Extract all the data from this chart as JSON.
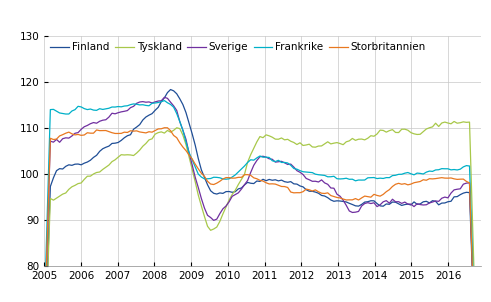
{
  "title": "",
  "ylim": [
    80,
    130
  ],
  "yticks": [
    80,
    90,
    100,
    110,
    120,
    130
  ],
  "countries": [
    "Finland",
    "Tyskland",
    "Sverige",
    "Frankrike",
    "Storbritannien"
  ],
  "colors": {
    "Finland": "#1F4E96",
    "Tyskland": "#A8C84A",
    "Sverige": "#7030A0",
    "Frankrike": "#00B0C8",
    "Storbritannien": "#E87820"
  },
  "linewidth": 0.9,
  "grid_color": "#C8C8C8",
  "background_color": "#FFFFFF",
  "legend_fontsize": 7.5,
  "tick_fontsize": 7.5,
  "x_tick_labels": [
    "2005",
    "2006",
    "2007",
    "2008",
    "2009",
    "2010",
    "2011",
    "2012",
    "2013",
    "2014",
    "2015",
    "2016"
  ],
  "x_tick_positions": [
    2005,
    2006,
    2007,
    2008,
    2009,
    2010,
    2011,
    2012,
    2013,
    2014,
    2015,
    2016
  ],
  "xlim": [
    2005,
    2016.9
  ]
}
